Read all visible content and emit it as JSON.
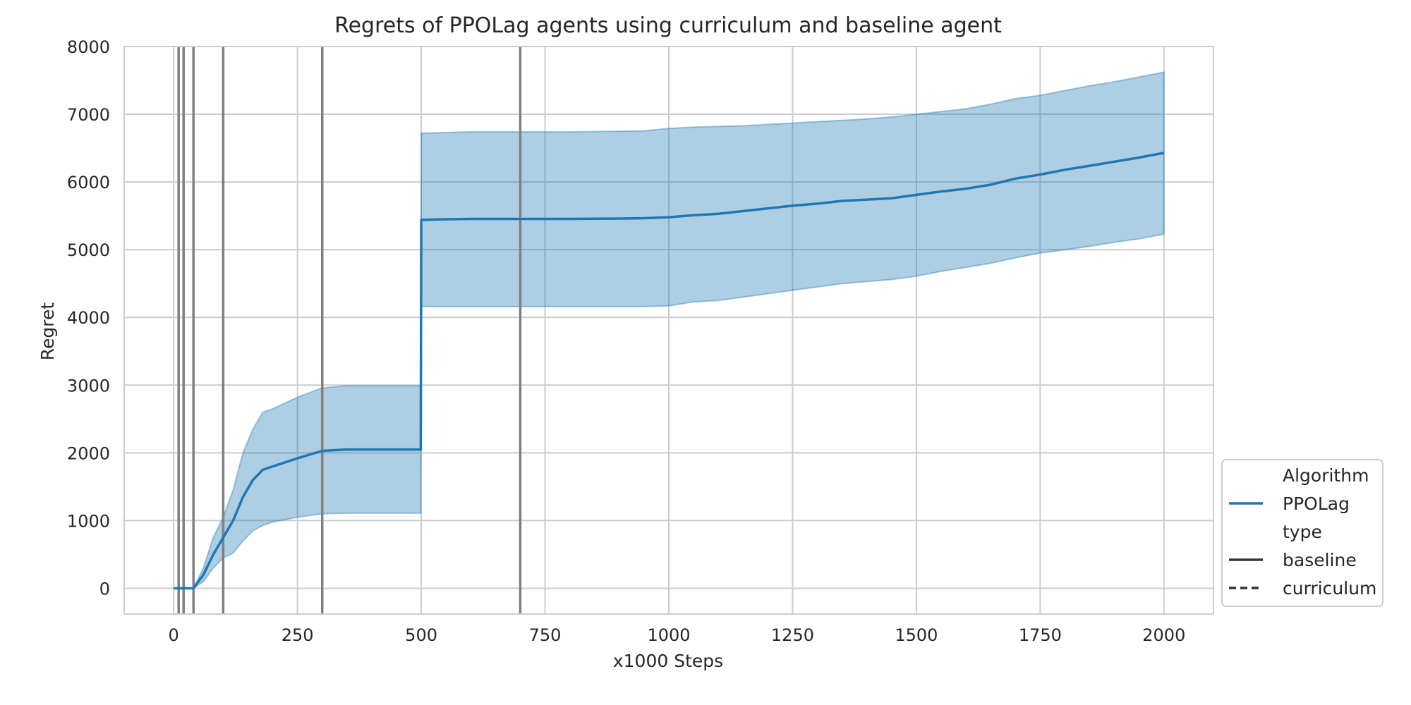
{
  "chart_data": {
    "type": "line",
    "title": "Regrets of PPOLag agents using curriculum and baseline agent",
    "xlabel": "x1000 Steps",
    "ylabel": "Regret",
    "xlim": [
      -100,
      2100
    ],
    "ylim": [
      -380,
      8000
    ],
    "xticks": [
      0,
      250,
      500,
      750,
      1000,
      1250,
      1500,
      1750,
      2000
    ],
    "yticks": [
      0,
      1000,
      2000,
      3000,
      4000,
      5000,
      6000,
      7000,
      8000
    ],
    "grid": true,
    "legend": {
      "placement": "lower-right-outside",
      "entries": [
        {
          "label": "Algorithm",
          "kind": "header"
        },
        {
          "label": "PPOLag",
          "kind": "line",
          "style": "solid",
          "color": "#1f77b4"
        },
        {
          "label": "type",
          "kind": "header"
        },
        {
          "label": "baseline",
          "kind": "line",
          "style": "solid",
          "color": "#333333"
        },
        {
          "label": "curriculum",
          "kind": "line",
          "style": "dashed",
          "color": "#333333"
        }
      ]
    },
    "vertical_lines": [
      10,
      20,
      40,
      100,
      300,
      700
    ],
    "colors": {
      "series": "#1f77b4",
      "band": "#1f77b4",
      "vline": "#808080",
      "grid": "#cccccc"
    },
    "series": [
      {
        "name": "PPOLag",
        "style": "solid",
        "x": [
          0,
          10,
          20,
          40,
          50,
          60,
          80,
          100,
          120,
          140,
          160,
          180,
          200,
          250,
          300,
          350,
          400,
          450,
          499,
          500,
          550,
          600,
          650,
          700,
          750,
          800,
          850,
          900,
          950,
          1000,
          1050,
          1100,
          1150,
          1200,
          1250,
          1300,
          1350,
          1400,
          1450,
          1500,
          1550,
          1600,
          1650,
          1700,
          1750,
          1800,
          1850,
          1900,
          1950,
          2000
        ],
        "y": [
          0,
          0,
          0,
          0,
          100,
          200,
          500,
          750,
          1000,
          1350,
          1600,
          1750,
          1800,
          1920,
          2030,
          2050,
          2050,
          2050,
          2050,
          5440,
          5450,
          5455,
          5455,
          5455,
          5455,
          5455,
          5458,
          5460,
          5465,
          5480,
          5510,
          5530,
          5570,
          5610,
          5650,
          5680,
          5720,
          5740,
          5760,
          5810,
          5860,
          5900,
          5960,
          6050,
          6110,
          6180,
          6240,
          6300,
          6360,
          6430
        ],
        "lower": [
          0,
          0,
          0,
          0,
          50,
          100,
          300,
          450,
          520,
          700,
          850,
          930,
          980,
          1050,
          1100,
          1110,
          1110,
          1110,
          1110,
          4160,
          4160,
          4160,
          4160,
          4160,
          4160,
          4160,
          4160,
          4160,
          4160,
          4170,
          4230,
          4250,
          4300,
          4350,
          4400,
          4450,
          4500,
          4530,
          4560,
          4610,
          4680,
          4740,
          4800,
          4880,
          4950,
          5000,
          5050,
          5110,
          5160,
          5230
        ],
        "upper": [
          0,
          0,
          0,
          0,
          150,
          300,
          750,
          1050,
          1450,
          2000,
          2350,
          2600,
          2650,
          2820,
          2960,
          2990,
          2990,
          2990,
          2990,
          6720,
          6730,
          6740,
          6740,
          6740,
          6740,
          6740,
          6745,
          6750,
          6755,
          6790,
          6810,
          6820,
          6830,
          6850,
          6870,
          6890,
          6910,
          6930,
          6960,
          7000,
          7040,
          7080,
          7150,
          7230,
          7280,
          7350,
          7420,
          7480,
          7550,
          7620
        ]
      }
    ]
  }
}
